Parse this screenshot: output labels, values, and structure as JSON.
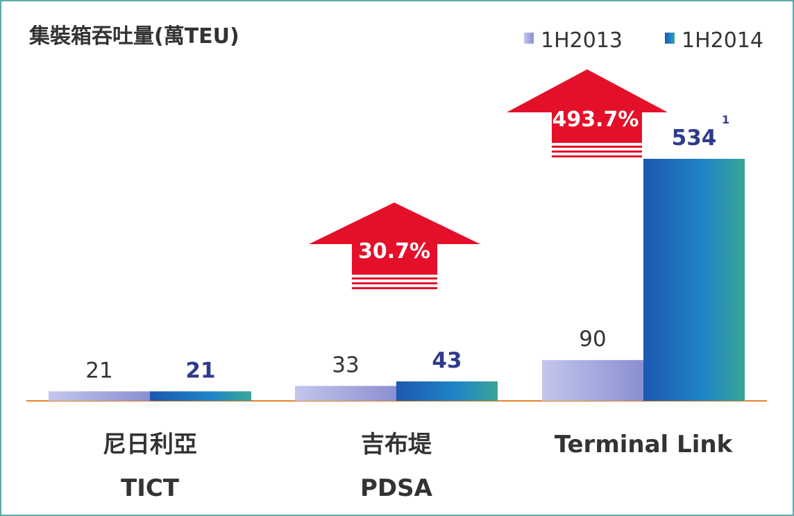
{
  "chart_data": {
    "type": "bar",
    "title": "集裝箱吞吐量(萬TEU)",
    "categories": [
      [
        "尼日利亞",
        "TICT"
      ],
      [
        "吉布堤",
        "PDSA"
      ],
      [
        "Terminal Link"
      ]
    ],
    "series": [
      {
        "name": "1H2013",
        "color": "#9498d6",
        "values": [
          21,
          33,
          90
        ]
      },
      {
        "name": "1H2014",
        "color": "#1a6ab8",
        "values": [
          21,
          43,
          534
        ]
      }
    ],
    "annotations": [
      "30.7%",
      "493.7%"
    ],
    "footnote_marker": "1",
    "legend": "top-right"
  }
}
